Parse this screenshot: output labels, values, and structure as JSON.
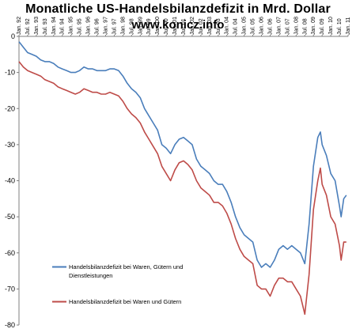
{
  "chart_data": {
    "type": "line",
    "title": "Monatliche US-Handelsbilanzdefizit  in Mrd. Dollar",
    "subtitle": "www.konicz.info",
    "xlabel": "",
    "ylabel": "",
    "ylim": [
      -80,
      0
    ],
    "yticks": [
      0,
      -10,
      -20,
      -30,
      -40,
      -50,
      -60,
      -70,
      -80
    ],
    "grid": false,
    "legend_position": "bottom-left",
    "x_tick_labels": [
      "Jan. 92",
      "Jul. 92",
      "Jan. 93",
      "Jul. 93",
      "Jan. 94",
      "Jul. 94",
      "Jan. 95",
      "Jul. 95",
      "Jan. 96",
      "Jul. 96",
      "Jan. 97",
      "Jul. 97",
      "Jan. 98",
      "Jul. 98",
      "Jan. 99",
      "Jul. 99",
      "Jan. 00",
      "Jul. 00",
      "Jan. 01",
      "Jul. 01",
      "Jan. 02",
      "Jul. 02",
      "Jan. 03",
      "Jul. 03",
      "Jan. 04",
      "Jul. 04",
      "Jan. 05",
      "Jul. 05",
      "Jan. 06",
      "Jul. 06",
      "Jan. 07",
      "Jul. 07",
      "Jan. 08",
      "Jul. 08",
      "Jan. 09",
      "Jul. 09",
      "Jan. 10",
      "Jul. 10",
      "Jan. 11"
    ],
    "series": [
      {
        "name": "Handelsbilanzdefizit bei Waren, Gütern und Dienstleistungen",
        "color": "#4a7ebb",
        "points": [
          [
            1992.0,
            -1.5
          ],
          [
            1992.25,
            -3
          ],
          [
            1992.5,
            -4.5
          ],
          [
            1992.75,
            -5
          ],
          [
            1993.0,
            -5.5
          ],
          [
            1993.25,
            -6.5
          ],
          [
            1993.5,
            -7
          ],
          [
            1993.75,
            -7
          ],
          [
            1994.0,
            -7.5
          ],
          [
            1994.25,
            -8.5
          ],
          [
            1994.5,
            -9
          ],
          [
            1994.75,
            -9.5
          ],
          [
            1995.0,
            -10
          ],
          [
            1995.25,
            -10
          ],
          [
            1995.5,
            -9.5
          ],
          [
            1995.75,
            -8.5
          ],
          [
            1996.0,
            -9
          ],
          [
            1996.25,
            -9
          ],
          [
            1996.5,
            -9.5
          ],
          [
            1996.75,
            -9.5
          ],
          [
            1997.0,
            -9.5
          ],
          [
            1997.25,
            -9
          ],
          [
            1997.5,
            -9
          ],
          [
            1997.75,
            -9.5
          ],
          [
            1998.0,
            -11
          ],
          [
            1998.25,
            -13
          ],
          [
            1998.5,
            -14.5
          ],
          [
            1998.75,
            -15.5
          ],
          [
            1999.0,
            -17
          ],
          [
            1999.25,
            -20
          ],
          [
            1999.5,
            -22
          ],
          [
            1999.75,
            -24
          ],
          [
            2000.0,
            -26
          ],
          [
            2000.25,
            -30
          ],
          [
            2000.5,
            -31
          ],
          [
            2000.75,
            -32.5
          ],
          [
            2001.0,
            -30
          ],
          [
            2001.25,
            -28.5
          ],
          [
            2001.5,
            -28
          ],
          [
            2001.75,
            -29
          ],
          [
            2002.0,
            -30
          ],
          [
            2002.25,
            -34
          ],
          [
            2002.5,
            -36
          ],
          [
            2002.75,
            -37
          ],
          [
            2003.0,
            -38
          ],
          [
            2003.25,
            -40
          ],
          [
            2003.5,
            -41
          ],
          [
            2003.75,
            -41
          ],
          [
            2004.0,
            -43
          ],
          [
            2004.25,
            -46
          ],
          [
            2004.5,
            -50
          ],
          [
            2004.75,
            -53
          ],
          [
            2005.0,
            -55
          ],
          [
            2005.25,
            -56
          ],
          [
            2005.5,
            -57
          ],
          [
            2005.75,
            -62
          ],
          [
            2006.0,
            -64
          ],
          [
            2006.25,
            -63
          ],
          [
            2006.5,
            -64
          ],
          [
            2006.75,
            -62
          ],
          [
            2007.0,
            -59
          ],
          [
            2007.25,
            -58
          ],
          [
            2007.5,
            -59
          ],
          [
            2007.75,
            -58
          ],
          [
            2008.0,
            -59
          ],
          [
            2008.25,
            -60
          ],
          [
            2008.5,
            -63
          ],
          [
            2008.75,
            -52
          ],
          [
            2009.0,
            -36
          ],
          [
            2009.25,
            -28
          ],
          [
            2009.4,
            -26.5
          ],
          [
            2009.5,
            -30
          ],
          [
            2009.75,
            -33
          ],
          [
            2010.0,
            -38
          ],
          [
            2010.25,
            -40
          ],
          [
            2010.5,
            -47
          ],
          [
            2010.6,
            -50
          ],
          [
            2010.75,
            -45
          ],
          [
            2010.9,
            -44
          ]
        ]
      },
      {
        "name": "Handelsbilanzdefizit bei Waren und Gütern",
        "color": "#be4b48",
        "points": [
          [
            1992.0,
            -7
          ],
          [
            1992.25,
            -8.5
          ],
          [
            1992.5,
            -9.5
          ],
          [
            1992.75,
            -10
          ],
          [
            1993.0,
            -10.5
          ],
          [
            1993.25,
            -11
          ],
          [
            1993.5,
            -12
          ],
          [
            1993.75,
            -12.5
          ],
          [
            1994.0,
            -13
          ],
          [
            1994.25,
            -14
          ],
          [
            1994.5,
            -14.5
          ],
          [
            1994.75,
            -15
          ],
          [
            1995.0,
            -15.5
          ],
          [
            1995.25,
            -16
          ],
          [
            1995.5,
            -15.5
          ],
          [
            1995.75,
            -14.5
          ],
          [
            1996.0,
            -15
          ],
          [
            1996.25,
            -15.5
          ],
          [
            1996.5,
            -15.5
          ],
          [
            1996.75,
            -16
          ],
          [
            1997.0,
            -16
          ],
          [
            1997.25,
            -15.5
          ],
          [
            1997.5,
            -16
          ],
          [
            1997.75,
            -16.5
          ],
          [
            1998.0,
            -18
          ],
          [
            1998.25,
            -20
          ],
          [
            1998.5,
            -21.5
          ],
          [
            1998.75,
            -22.5
          ],
          [
            1999.0,
            -24
          ],
          [
            1999.25,
            -26.5
          ],
          [
            1999.5,
            -28.5
          ],
          [
            1999.75,
            -30.5
          ],
          [
            2000.0,
            -32.5
          ],
          [
            2000.25,
            -36
          ],
          [
            2000.5,
            -38
          ],
          [
            2000.75,
            -40
          ],
          [
            2001.0,
            -37
          ],
          [
            2001.25,
            -35
          ],
          [
            2001.5,
            -34.5
          ],
          [
            2001.75,
            -35.5
          ],
          [
            2002.0,
            -37
          ],
          [
            2002.25,
            -40
          ],
          [
            2002.5,
            -42
          ],
          [
            2002.75,
            -43
          ],
          [
            2003.0,
            -44
          ],
          [
            2003.25,
            -46
          ],
          [
            2003.5,
            -46
          ],
          [
            2003.75,
            -47
          ],
          [
            2004.0,
            -49
          ],
          [
            2004.25,
            -52
          ],
          [
            2004.5,
            -56
          ],
          [
            2004.75,
            -59
          ],
          [
            2005.0,
            -61
          ],
          [
            2005.25,
            -62
          ],
          [
            2005.5,
            -63
          ],
          [
            2005.75,
            -69
          ],
          [
            2006.0,
            -70
          ],
          [
            2006.25,
            -70
          ],
          [
            2006.5,
            -72
          ],
          [
            2006.75,
            -69
          ],
          [
            2007.0,
            -67
          ],
          [
            2007.25,
            -67
          ],
          [
            2007.5,
            -68
          ],
          [
            2007.75,
            -68
          ],
          [
            2008.0,
            -70
          ],
          [
            2008.25,
            -72
          ],
          [
            2008.5,
            -77
          ],
          [
            2008.75,
            -66
          ],
          [
            2009.0,
            -48
          ],
          [
            2009.25,
            -40
          ],
          [
            2009.4,
            -36.5
          ],
          [
            2009.5,
            -41
          ],
          [
            2009.75,
            -44
          ],
          [
            2010.0,
            -50
          ],
          [
            2010.25,
            -52
          ],
          [
            2010.5,
            -58
          ],
          [
            2010.6,
            -62
          ],
          [
            2010.75,
            -57
          ],
          [
            2010.9,
            -57
          ]
        ]
      }
    ]
  }
}
